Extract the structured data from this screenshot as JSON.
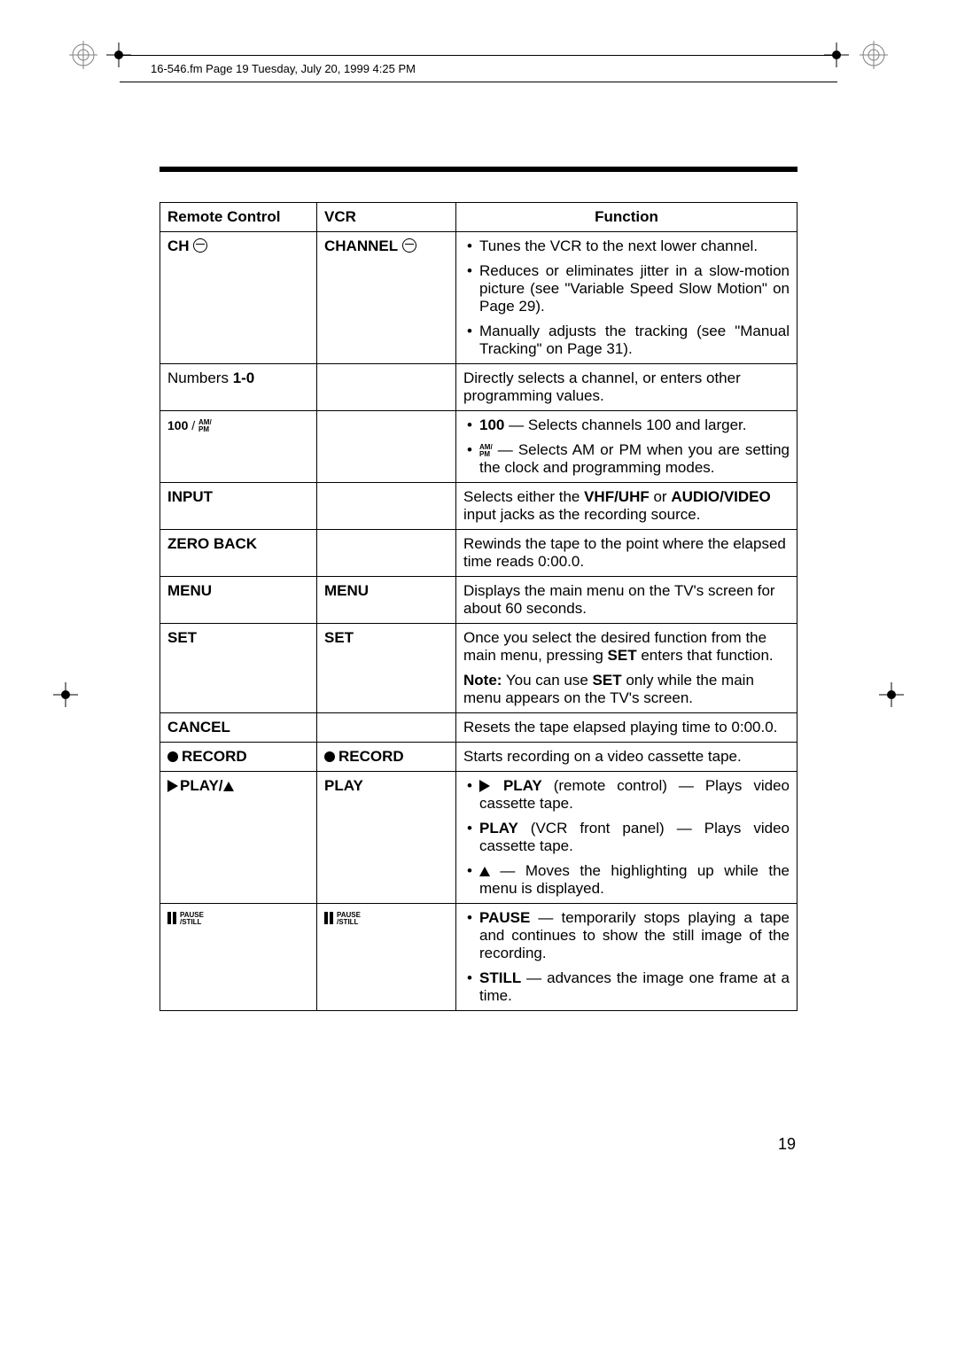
{
  "header": {
    "text": "16-546.fm  Page 19  Tuesday, July 20, 1999  4:25 PM"
  },
  "page_number": "19",
  "table": {
    "head": {
      "c1": "Remote Control",
      "c2": "VCR",
      "c3": "Function"
    },
    "rows": {
      "ch": {
        "rc_label": "CH",
        "vcr_label": "CHANNEL",
        "b1": "Tunes the VCR to the next lower channel.",
        "b2": "Reduces or eliminates jitter in a slow-motion picture (see \"Variable Speed Slow Motion\" on Page 29).",
        "b3": "Manually adjusts the tracking (see \"Manual Tracking\" on Page 31)."
      },
      "numbers": {
        "rc_a": "Numbers ",
        "rc_b": "1-0",
        "fn": "Directly selects a channel, or enters other programming values."
      },
      "hundred": {
        "rc_100": "100",
        "rc_slash": " / ",
        "ampm_top": "AM/",
        "ampm_bot": "PM",
        "b1_a": "100",
        "b1_b": " — Selects channels 100 and larger.",
        "b2": " — Selects AM or PM when you are setting the clock and programming modes."
      },
      "input": {
        "rc": "INPUT",
        "fn_a": "Selects either the ",
        "fn_b": "VHF/UHF",
        "fn_c": " or ",
        "fn_d": "AUDIO/VIDEO",
        "fn_e": " input jacks as the recording source."
      },
      "zeroback": {
        "rc": "ZERO BACK",
        "fn": "Rewinds the tape to the point where the elapsed time reads 0:00.0."
      },
      "menu": {
        "rc": "MENU",
        "vcr": "MENU",
        "fn": "Displays the main menu on the TV's screen for about 60 seconds."
      },
      "set": {
        "rc": "SET",
        "vcr": "SET",
        "p1_a": "Once you select the desired function from the main menu, pressing ",
        "p1_b": "SET",
        "p1_c": " enters that function.",
        "p2_a": "Note:",
        "p2_b": " You can use ",
        "p2_c": "SET",
        "p2_d": " only while the main menu appears on the TV's screen."
      },
      "cancel": {
        "rc": "CANCEL",
        "fn": "Resets the tape elapsed playing time to 0:00.0."
      },
      "record": {
        "rc": "RECORD",
        "vcr": "RECORD",
        "fn": "Starts recording on a video cassette tape."
      },
      "play": {
        "rc": "PLAY/",
        "vcr": "PLAY",
        "b1_a": "PLAY",
        "b1_b": " (remote control) — Plays video cassette tape.",
        "b2_a": "PLAY",
        "b2_b": " (VCR front panel) — Plays video cassette tape.",
        "b3": " — Moves the highlighting up while the menu is displayed."
      },
      "pause": {
        "lbl_top": "PAUSE",
        "lbl_bot": "/STILL",
        "b1_a": "PAUSE",
        "b1_b": " — temporarily stops playing a tape and continues to show the still image of the recording.",
        "b2_a": "STILL",
        "b2_b": " — advances the image one frame at a time."
      }
    }
  }
}
